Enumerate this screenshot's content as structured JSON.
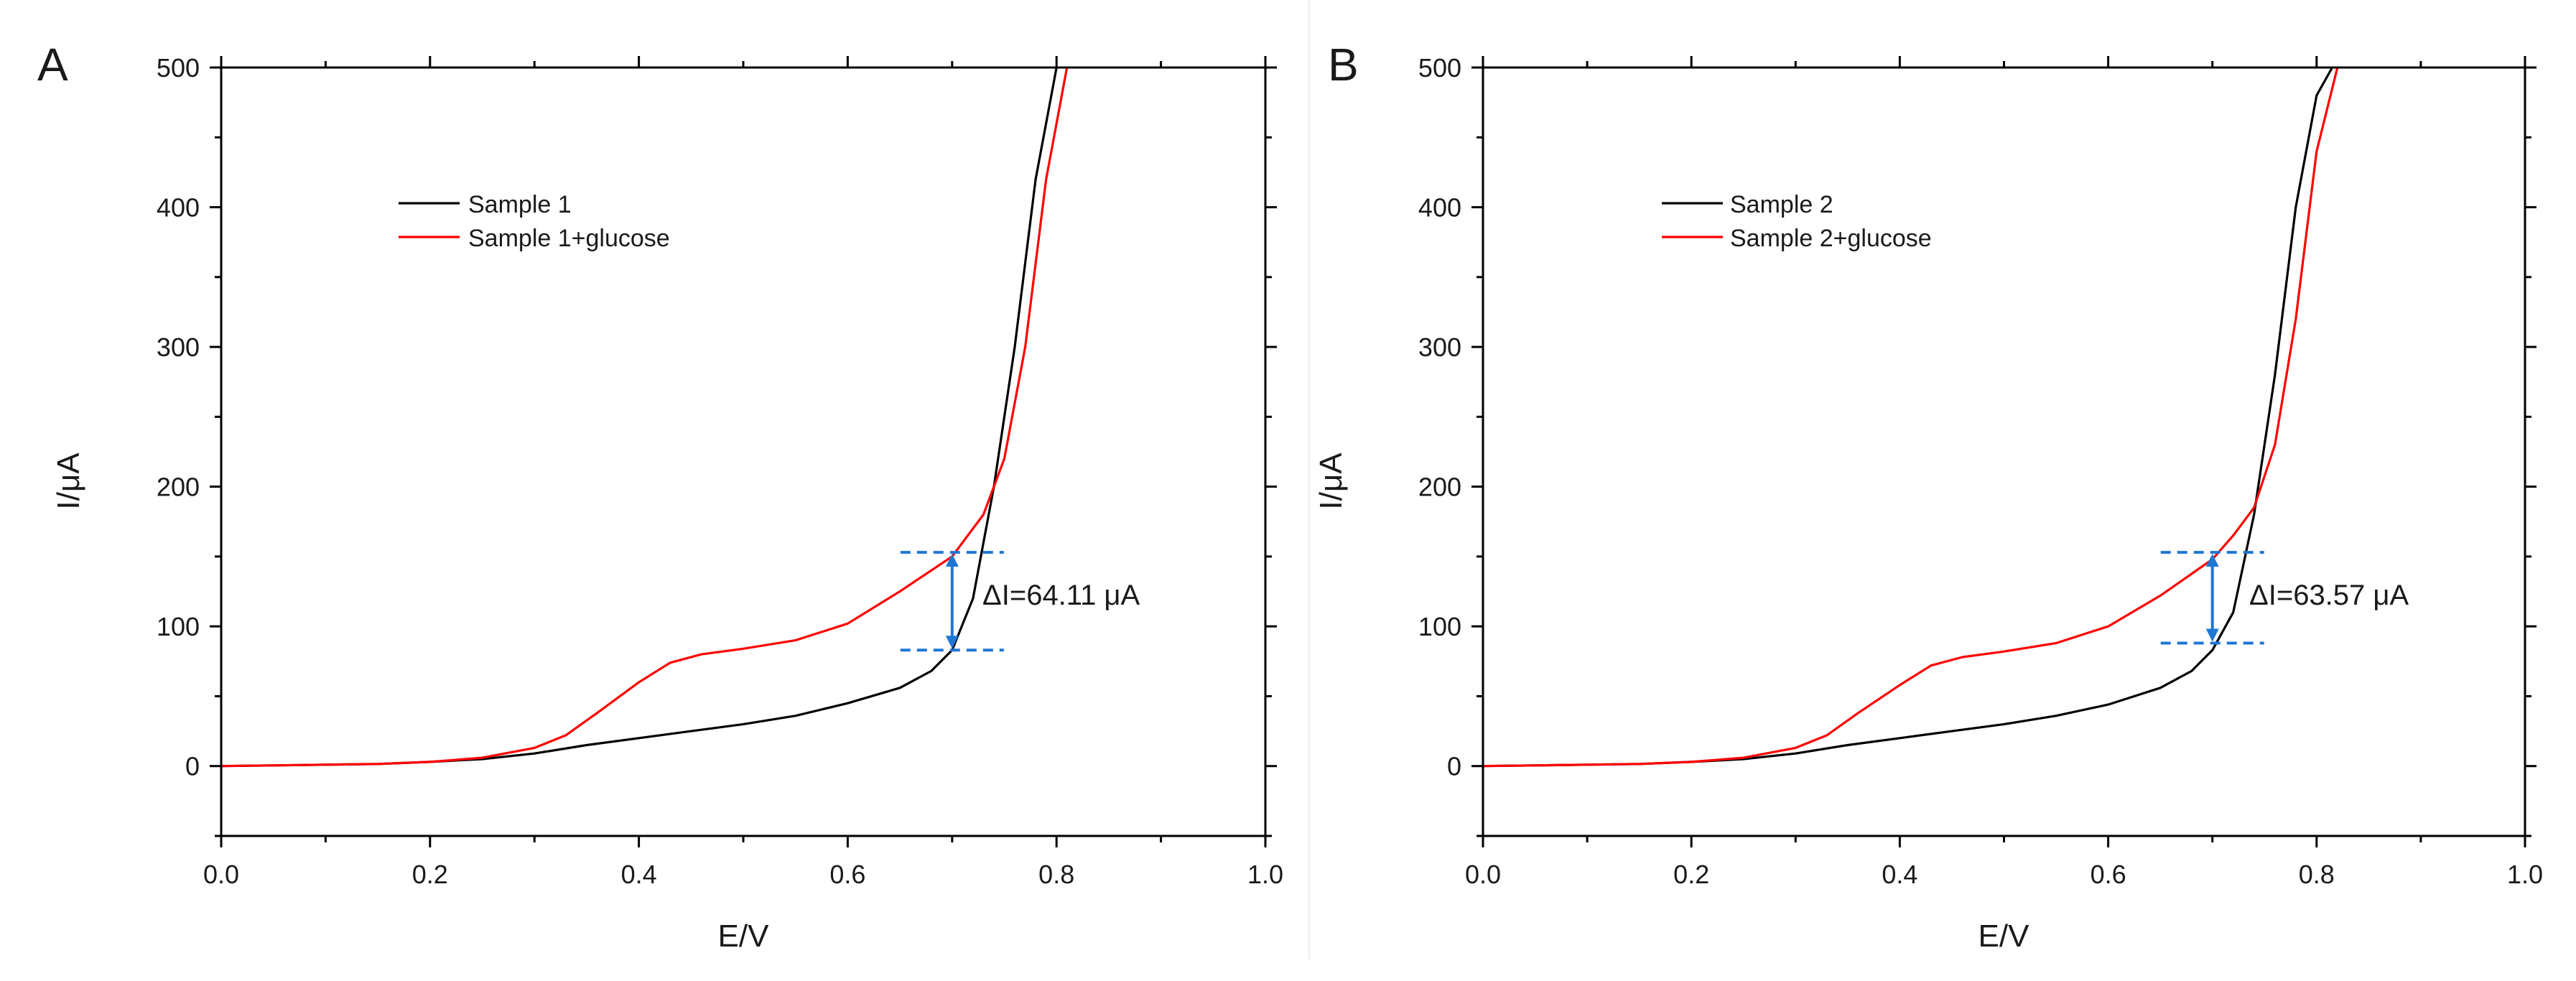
{
  "chart_data": [
    {
      "panel_label": "A",
      "type": "line",
      "xlabel": "E/V",
      "ylabel": "I/μA",
      "xlim": [
        0.0,
        1.0
      ],
      "ylim": [
        -50,
        500
      ],
      "xticks": [
        0.0,
        0.2,
        0.4,
        0.6,
        0.8,
        1.0
      ],
      "xtick_labels": [
        "0.0",
        "0.2",
        "0.4",
        "0.6",
        "0.8",
        "1.0"
      ],
      "yticks": [
        0,
        100,
        200,
        300,
        400,
        500
      ],
      "ytick_labels": [
        "0",
        "100",
        "200",
        "300",
        "400",
        "500"
      ],
      "legend_position": "upper-left",
      "series": [
        {
          "name": "Sample 1",
          "color": "#000000",
          "x": [
            0.0,
            0.05,
            0.1,
            0.15,
            0.2,
            0.25,
            0.3,
            0.35,
            0.4,
            0.45,
            0.5,
            0.55,
            0.6,
            0.65,
            0.68,
            0.7,
            0.72,
            0.74,
            0.76,
            0.78,
            0.8
          ],
          "y": [
            0,
            0.5,
            1,
            1.5,
            3,
            5,
            9,
            15,
            20,
            25,
            30,
            36,
            45,
            56,
            68,
            83,
            120,
            200,
            300,
            420,
            500
          ]
        },
        {
          "name": "Sample 1+glucose",
          "color": "#ff0000",
          "x": [
            0.0,
            0.05,
            0.1,
            0.15,
            0.2,
            0.25,
            0.3,
            0.33,
            0.36,
            0.4,
            0.43,
            0.46,
            0.5,
            0.55,
            0.6,
            0.65,
            0.7,
            0.73,
            0.75,
            0.77,
            0.79,
            0.81
          ],
          "y": [
            0,
            0.5,
            1,
            1.5,
            3,
            6,
            13,
            22,
            38,
            60,
            74,
            80,
            84,
            90,
            102,
            125,
            150,
            180,
            220,
            300,
            420,
            500
          ]
        }
      ],
      "annotation": {
        "text": "ΔI=64.11 μA",
        "x": 0.7,
        "y_low": 83,
        "y_high": 153,
        "line_color": "#1f77d4"
      }
    },
    {
      "panel_label": "B",
      "type": "line",
      "xlabel": "E/V",
      "ylabel": "I/μA",
      "xlim": [
        0.0,
        1.0
      ],
      "ylim": [
        -50,
        500
      ],
      "xticks": [
        0.0,
        0.2,
        0.4,
        0.6,
        0.8,
        1.0
      ],
      "xtick_labels": [
        "0.0",
        "0.2",
        "0.4",
        "0.6",
        "0.8",
        "1.0"
      ],
      "yticks": [
        0,
        100,
        200,
        300,
        400,
        500
      ],
      "ytick_labels": [
        "0",
        "100",
        "200",
        "300",
        "400",
        "500"
      ],
      "legend_position": "upper-left",
      "series": [
        {
          "name": "Sample 2",
          "color": "#000000",
          "x": [
            0.0,
            0.05,
            0.1,
            0.15,
            0.2,
            0.25,
            0.3,
            0.35,
            0.4,
            0.45,
            0.5,
            0.55,
            0.6,
            0.65,
            0.68,
            0.7,
            0.72,
            0.74,
            0.76,
            0.78,
            0.8,
            0.815
          ],
          "y": [
            0,
            0.5,
            1,
            1.5,
            3,
            5,
            9,
            15,
            20,
            25,
            30,
            36,
            44,
            56,
            68,
            83,
            110,
            180,
            280,
            400,
            480,
            500
          ]
        },
        {
          "name": "Sample 2+glucose",
          "color": "#ff0000",
          "x": [
            0.0,
            0.05,
            0.1,
            0.15,
            0.2,
            0.25,
            0.3,
            0.33,
            0.36,
            0.4,
            0.43,
            0.46,
            0.5,
            0.55,
            0.6,
            0.65,
            0.7,
            0.72,
            0.74,
            0.76,
            0.78,
            0.8,
            0.82
          ],
          "y": [
            0,
            0.5,
            1,
            1.5,
            3,
            6,
            13,
            22,
            38,
            58,
            72,
            78,
            82,
            88,
            100,
            122,
            148,
            165,
            185,
            230,
            320,
            440,
            500
          ]
        }
      ],
      "annotation": {
        "text": "ΔI=63.57 μA",
        "x": 0.7,
        "y_low": 88,
        "y_high": 153,
        "line_color": "#1f77d4"
      }
    }
  ]
}
